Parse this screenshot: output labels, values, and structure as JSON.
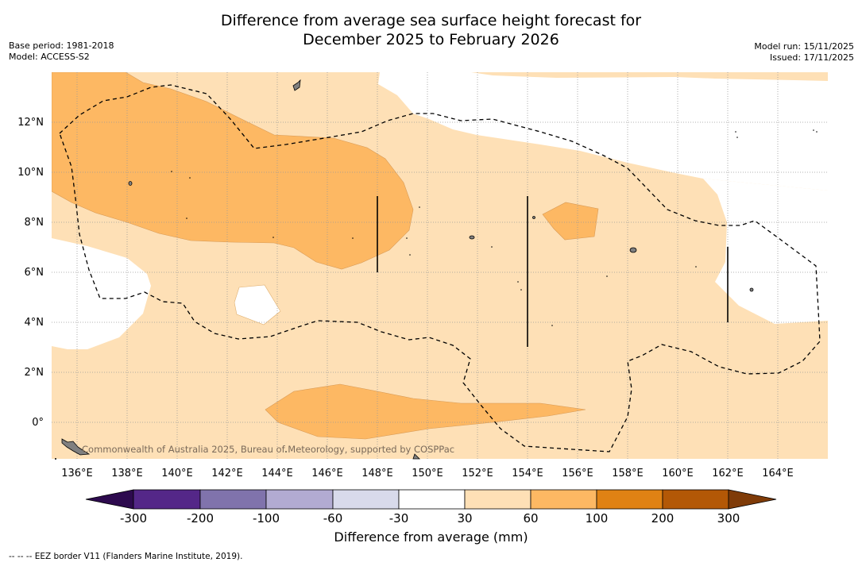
{
  "header": {
    "title_line1": "Difference from average sea surface height forecast for",
    "title_line2": "December 2025 to February 2026",
    "base_period": "Base period: 1981-2018",
    "model": "Model: ACCESS-S2",
    "model_run": "Model run: 15/11/2025",
    "issued": "Issued: 17/11/2025"
  },
  "map": {
    "lon_labels": [
      "136°E",
      "138°E",
      "140°E",
      "142°E",
      "144°E",
      "146°E",
      "148°E",
      "150°E",
      "152°E",
      "154°E",
      "156°E",
      "158°E",
      "160°E",
      "162°E",
      "164°E"
    ],
    "lat_labels": [
      "12°N",
      "10°N",
      "8°N",
      "6°N",
      "4°N",
      "2°N",
      "0°"
    ],
    "attribution": "Commonwealth of Australia 2025, Bureau of Meteorology, supported by COSPPac"
  },
  "colorbar": {
    "title": "Difference from average (mm)",
    "tick_labels": [
      "-300",
      "-200",
      "-100",
      "-60",
      "-30",
      "30",
      "60",
      "100",
      "200",
      "300"
    ],
    "low_extend_color": "#2d0a4e",
    "high_extend_color": "#7f3b08",
    "bins": [
      {
        "color": "#542788"
      },
      {
        "color": "#8073ac"
      },
      {
        "color": "#b2abd2"
      },
      {
        "color": "#d8daeb"
      },
      {
        "color": "#ffffff"
      },
      {
        "color": "#fee0b6"
      },
      {
        "color": "#fdb863"
      },
      {
        "color": "#e08214"
      },
      {
        "color": "#b35806"
      }
    ]
  },
  "footnote": "--  --  -- EEZ border V11 (Flanders Marine Institute, 2019)."
}
